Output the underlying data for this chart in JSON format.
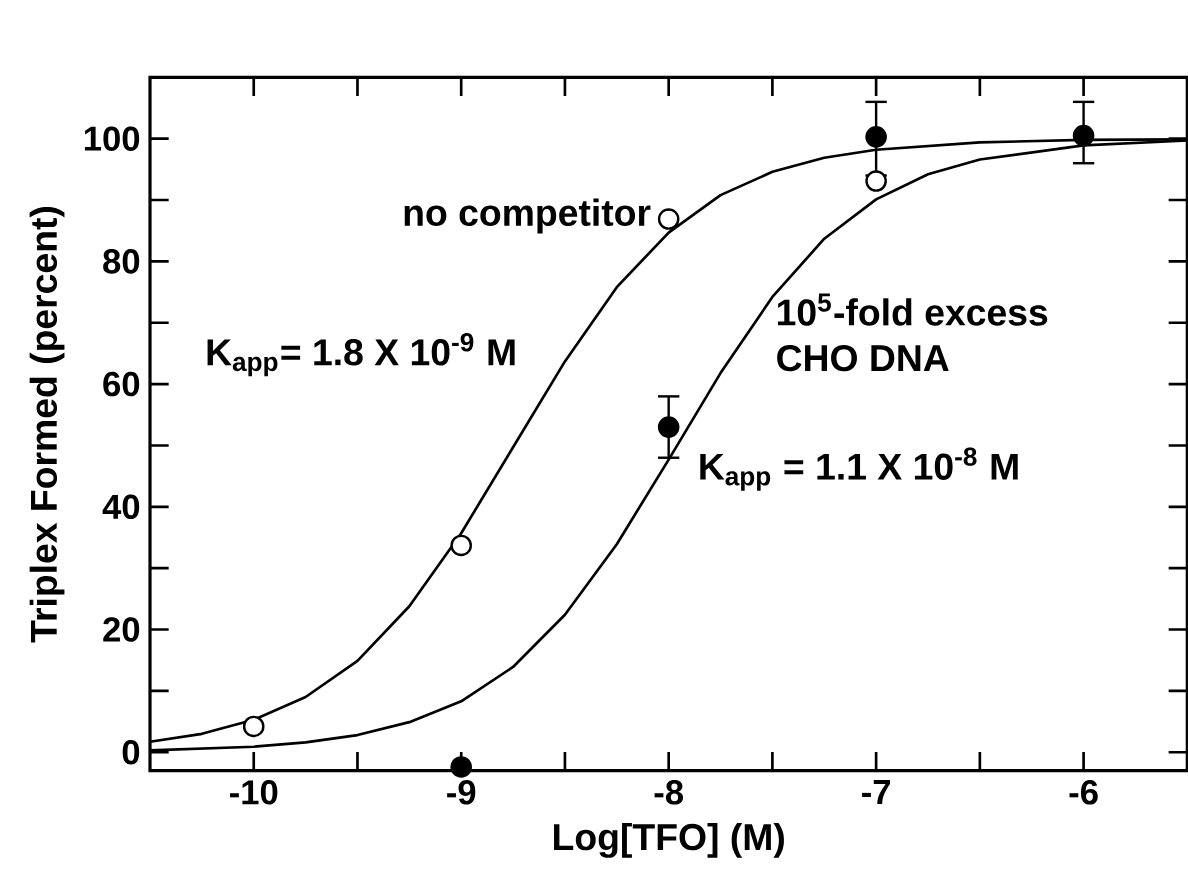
{
  "chart_data": {
    "type": "scatter",
    "xlabel": "Log[TFO] (M)",
    "ylabel": "Triplex Formed (percent)",
    "xlim": [
      -10.5,
      -5.5
    ],
    "ylim": [
      -3,
      110
    ],
    "xticks": [
      -10,
      {
        "value": -9.5,
        "label": null
      },
      -9,
      {
        "value": -8.5,
        "label": null
      },
      -8,
      {
        "value": -7.5,
        "label": null
      },
      -7,
      {
        "value": -6.5,
        "label": null
      },
      -6
    ],
    "yticks": [
      0,
      {
        "value": 10,
        "label": null
      },
      20,
      {
        "value": 30,
        "label": null
      },
      40,
      {
        "value": 50,
        "label": null
      },
      60,
      {
        "value": 70,
        "label": null
      },
      80,
      {
        "value": 90,
        "label": null
      },
      100
    ],
    "grid": false,
    "series": [
      {
        "type": "line",
        "color": "#000000",
        "marker": "none",
        "x": [
          -10.5,
          -10.25,
          -10,
          -9.75,
          -9.5,
          -9.25,
          -9,
          -8.75,
          -8.5,
          -8.25,
          -8,
          -7.75,
          -7.5,
          -7.25,
          -7,
          -6.5,
          -6,
          -5.5
        ],
        "values": [
          1.7,
          3.0,
          5.3,
          9.0,
          14.9,
          23.8,
          35.7,
          49.7,
          63.7,
          75.8,
          84.7,
          90.8,
          94.6,
          96.9,
          98.2,
          99.4,
          99.8,
          99.9
        ]
      },
      {
        "type": "line",
        "color": "#000000",
        "marker": "none",
        "x": [
          -10.5,
          -10,
          -9.75,
          -9.5,
          -9.25,
          -9,
          -8.75,
          -8.5,
          -8.25,
          -8,
          -7.75,
          -7.5,
          -7.25,
          -7,
          -6.75,
          -6.5,
          -6,
          -5.5
        ],
        "values": [
          0.3,
          0.9,
          1.6,
          2.8,
          4.9,
          8.3,
          13.9,
          22.4,
          33.9,
          47.7,
          61.8,
          74.2,
          83.7,
          90.1,
          94.2,
          96.6,
          98.9,
          99.7
        ]
      },
      {
        "color": "#ffffff",
        "marker": "circle",
        "x": [
          -10,
          -9,
          -8,
          -7
        ],
        "values": [
          4.2,
          33.7,
          86.9,
          93.1
        ]
      },
      {
        "color": "#000000",
        "marker": "circle",
        "x": [
          -9,
          -8,
          -7,
          -6
        ],
        "values": [
          -2.4,
          53,
          100.3,
          100.5
        ],
        "errors": [
          null,
          [
            48,
            58
          ],
          [
            94,
            106
          ],
          [
            96,
            106
          ]
        ]
      }
    ],
    "annotations": [
      "no competitor",
      "K$_{app}$= 1.8 X 10$^{-9}$ M",
      "10$^{5}$-fold excess",
      "CHO DNA",
      "K$_{app}$ = 1.1 X 10$^{-8}$ M"
    ]
  }
}
